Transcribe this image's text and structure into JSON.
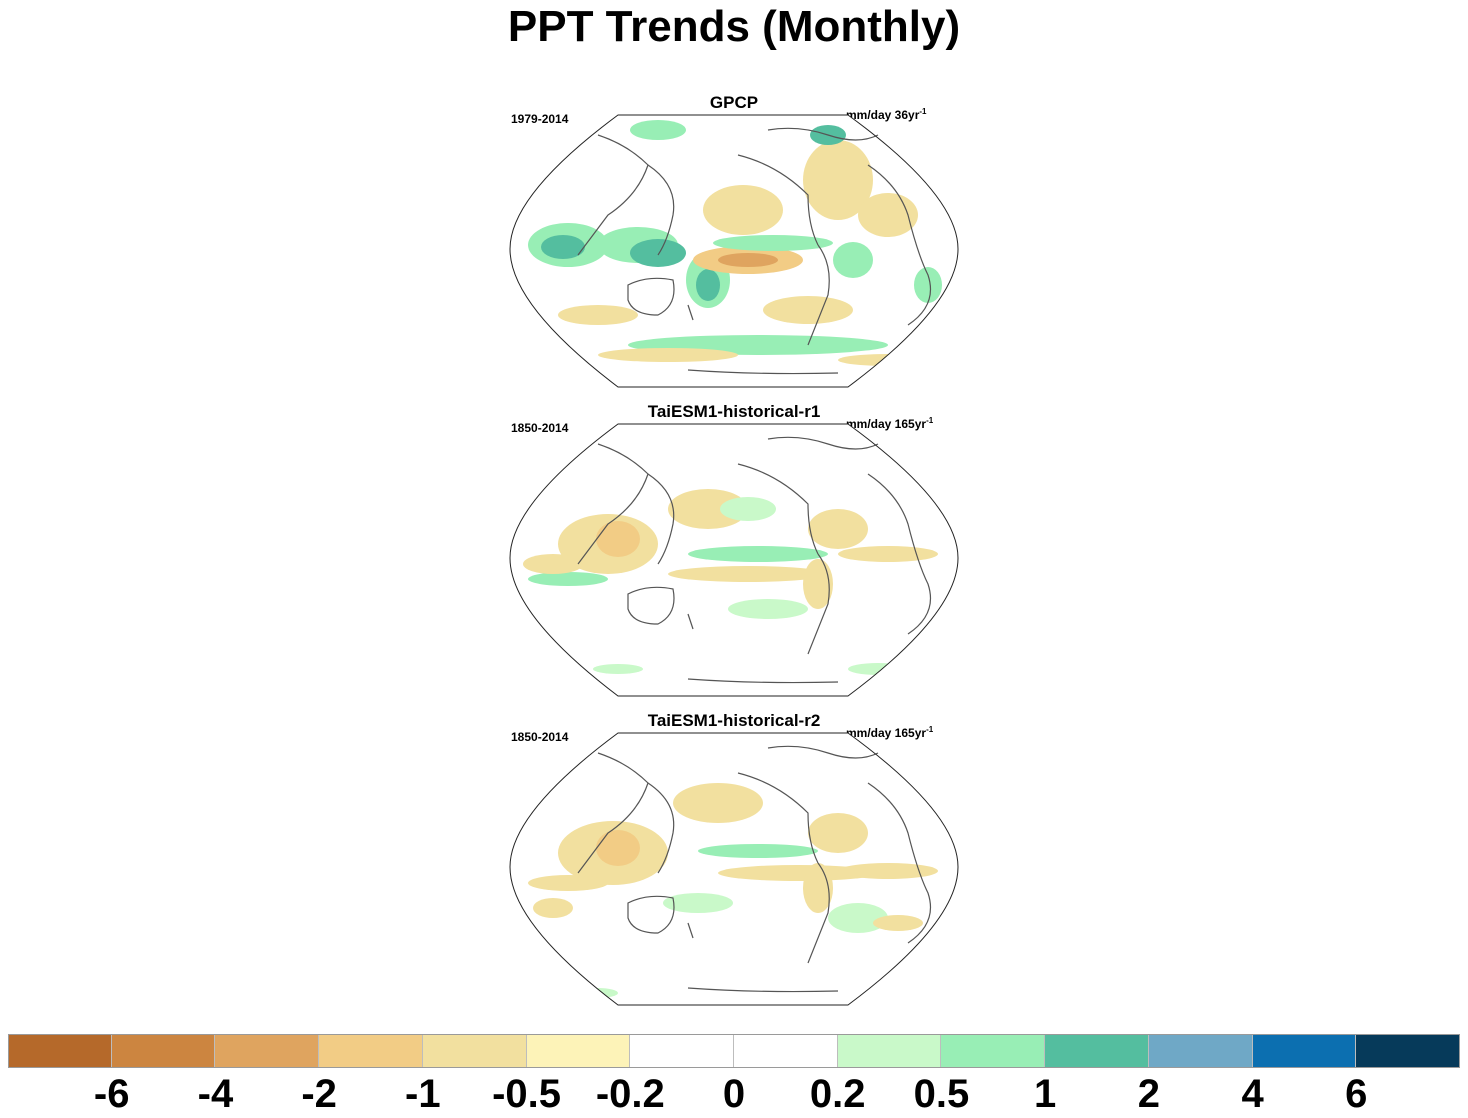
{
  "title": "PPT Trends (Monthly)",
  "panels": [
    {
      "label": "GPCP",
      "period": "1979-2014",
      "units_base": "mm/day 36yr",
      "units_exp": "-1"
    },
    {
      "label": "TaiESM1-historical-r1",
      "period": "1850-2014",
      "units_base": "mm/day 165yr",
      "units_exp": "-1"
    },
    {
      "label": "TaiESM1-historical-r2",
      "period": "1850-2014",
      "units_base": "mm/day 165yr",
      "units_exp": "-1"
    }
  ],
  "colorbar": {
    "colors": [
      "#b5692a",
      "#cc8540",
      "#dfa45f",
      "#f2cc85",
      "#f2e09f",
      "#fdf3b8",
      "#ffffff",
      "#ffffff",
      "#c9f9c9",
      "#98eeb5",
      "#54be9f",
      "#6fa8c6",
      "#0c6fb0",
      "#063a5a"
    ],
    "tick_labels": [
      "-6",
      "-4",
      "-2",
      "-1",
      "-0.5",
      "-0.2",
      "0",
      "0.2",
      "0.5",
      "1",
      "2",
      "4",
      "6"
    ]
  }
}
